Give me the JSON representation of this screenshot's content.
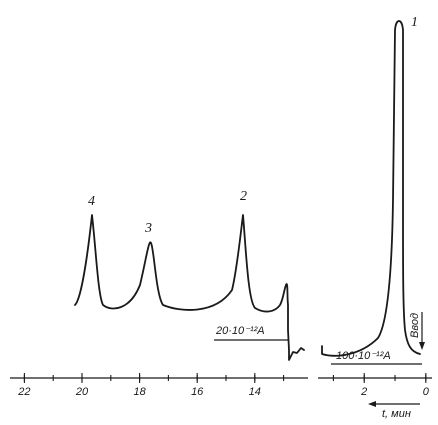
{
  "chart_data": {
    "type": "line",
    "title": "",
    "xlabel": "t, мин",
    "x_direction": "reversed",
    "left_panel": {
      "xlim": [
        22.5,
        12.5
      ],
      "ticks": [
        "22",
        "20",
        "18",
        "16",
        "14"
      ],
      "tick_values": [
        22,
        20,
        18,
        16,
        14
      ],
      "scale_label": "20·10⁻¹²A",
      "peaks": [
        {
          "label": "4",
          "t": 19.6
        },
        {
          "label": "3",
          "t": 17.5
        },
        {
          "label": "2",
          "t": 14.1
        }
      ]
    },
    "right_panel": {
      "xlim": [
        3.5,
        -0.2
      ],
      "ticks": [
        "2",
        "0"
      ],
      "tick_values": [
        2,
        0
      ],
      "scale_label": "100·10⁻¹²A",
      "injection_label": "Ввод",
      "peaks": [
        {
          "label": "1",
          "t": 1.0
        }
      ]
    },
    "grid": false,
    "legend": "none"
  }
}
